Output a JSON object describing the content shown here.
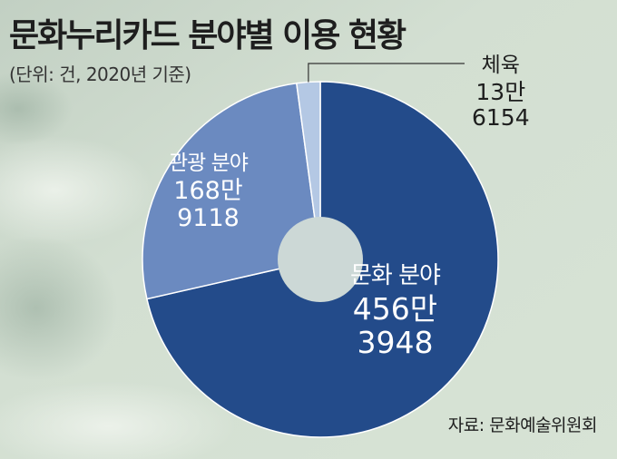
{
  "header": {
    "title": "문화누리카드 분야별 이용 현황",
    "subtitle": "(단위: 건, 2020년 기준)"
  },
  "chart_data": {
    "type": "pie",
    "title": "문화누리카드 분야별 이용 현황",
    "unit": "건",
    "year": 2020,
    "slices": [
      {
        "name": "문화 분야",
        "value": 4563948,
        "label_line1": "456만",
        "label_line2": "3948",
        "color": "#234b8a"
      },
      {
        "name": "관광 분야",
        "value": 1689118,
        "label_line1": "168만",
        "label_line2": "9118",
        "color": "#6b8ac0"
      },
      {
        "name": "체육",
        "value": 136154,
        "label_line1": "13만",
        "label_line2": "6154",
        "color": "#b4c8e4"
      }
    ],
    "hole_color": "#ccd8d6",
    "separator_color": "#ffffff"
  },
  "footer": {
    "source": "자료: 문화예술위원회"
  }
}
